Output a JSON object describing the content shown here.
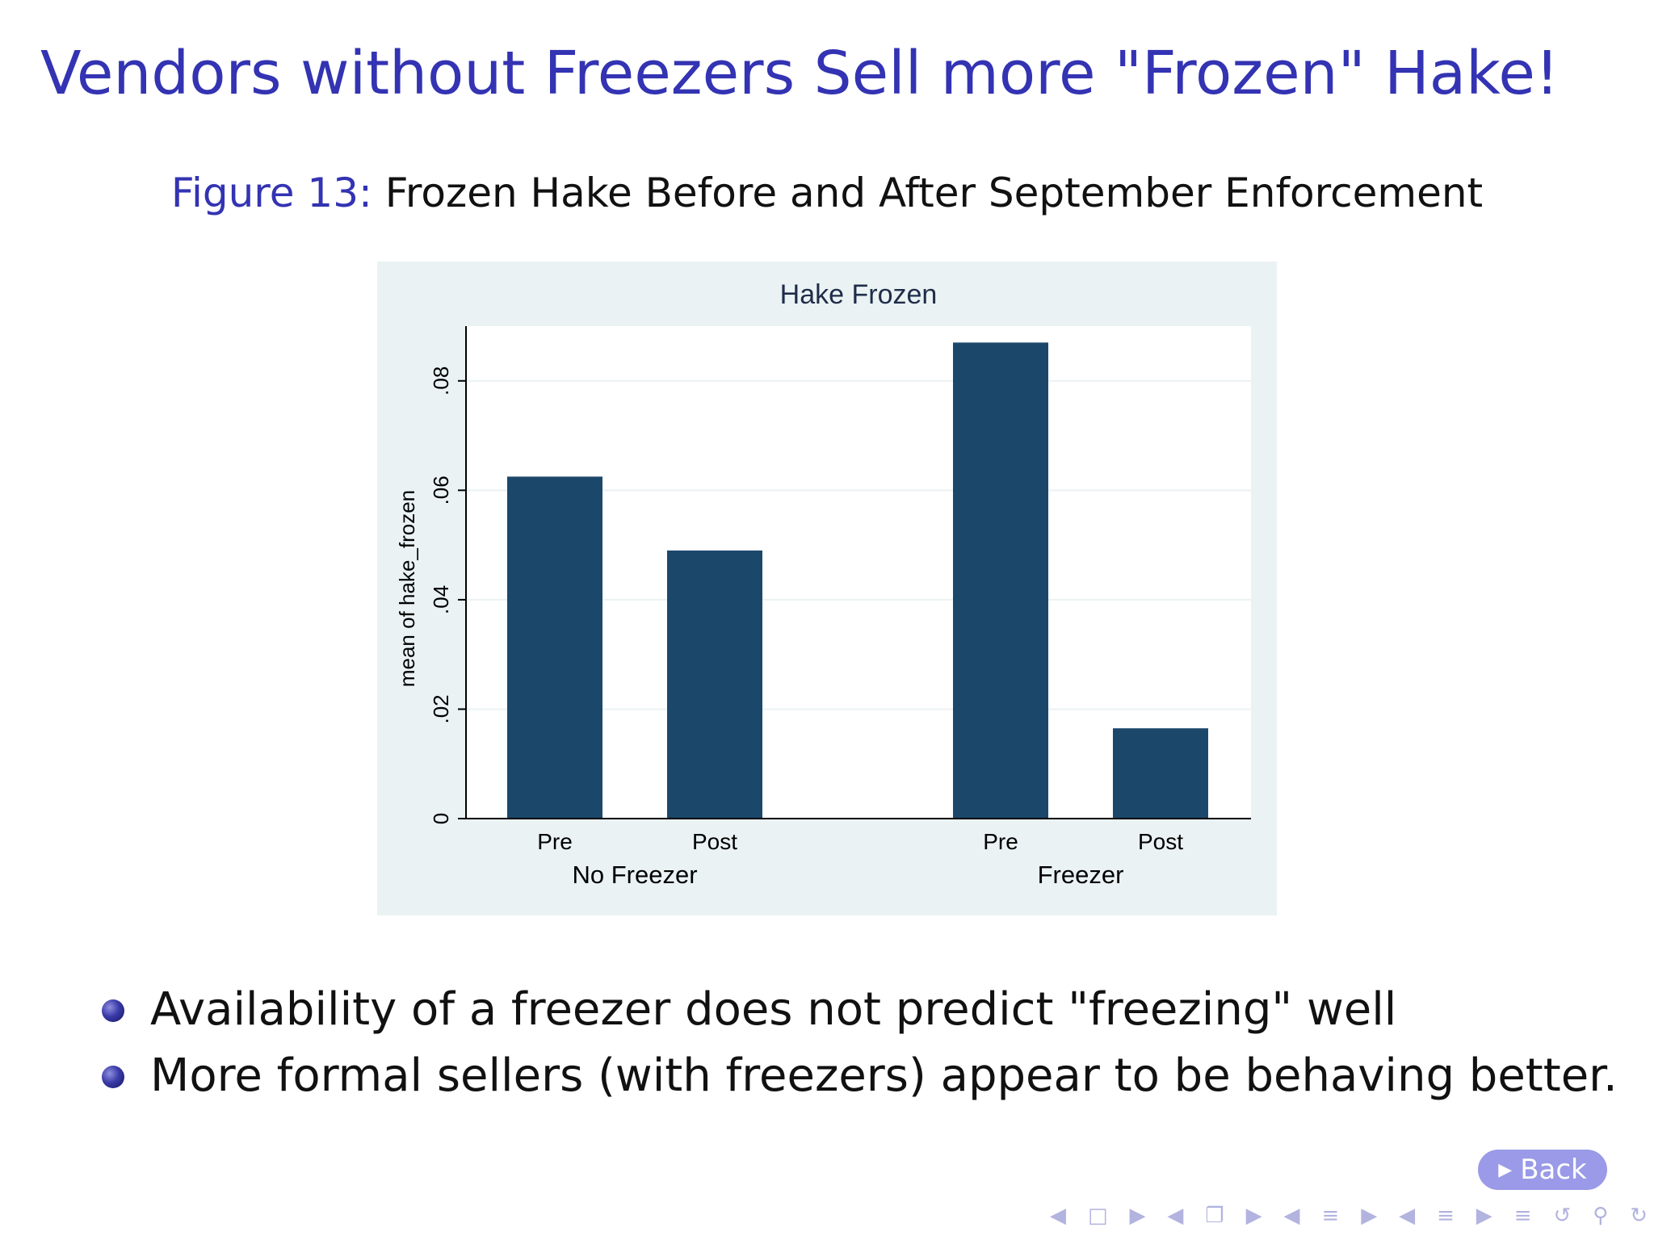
{
  "slide": {
    "title": "Vendors without Freezers Sell more \"Frozen\" Hake!",
    "caption_label": "Figure 13:",
    "caption_text": "Frozen Hake Before and After September Enforcement"
  },
  "chart_data": {
    "type": "bar",
    "title": "Hake Frozen",
    "ylabel": "mean of hake_frozen",
    "xlabel": "",
    "ylim": [
      0,
      0.09
    ],
    "yticks": [
      0,
      0.02,
      0.04,
      0.06,
      0.08
    ],
    "ytick_labels": [
      "0",
      ".02",
      ".04",
      ".06",
      ".08"
    ],
    "grid": true,
    "groups": [
      {
        "label": "No Freezer",
        "categories": [
          "Pre",
          "Post"
        ],
        "values": [
          0.0625,
          0.049
        ]
      },
      {
        "label": "Freezer",
        "categories": [
          "Pre",
          "Post"
        ],
        "values": [
          0.087,
          0.0165
        ]
      }
    ],
    "bar_color": "#1b476b",
    "legend": "none"
  },
  "bullets": [
    "Availability of a freezer does not predict \"freezing\" well",
    "More formal sellers (with freezers) appear to be behaving better."
  ],
  "back_button": {
    "label": "Back",
    "icon": "play-triangle-icon"
  },
  "nav": {
    "icons": [
      "arrow-left-icon",
      "frame-icon",
      "arrow-right-icon",
      "arrow-left-icon",
      "subsection-icon",
      "arrow-right-icon",
      "arrow-left-icon",
      "section-icon",
      "arrow-right-icon",
      "arrow-left-icon",
      "section-icon",
      "arrow-right-icon",
      "align-icon",
      "undo-icon",
      "search-icon",
      "redo-icon"
    ]
  },
  "colors": {
    "title": "#3333b3",
    "panel": "#eaf2f3",
    "bar": "#1b476b"
  }
}
